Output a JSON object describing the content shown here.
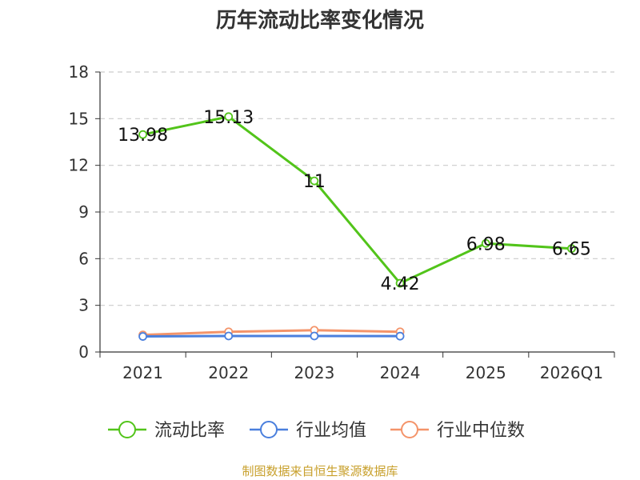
{
  "chart_data": {
    "type": "line",
    "title": "历年流动比率变化情况",
    "categories": [
      "2021",
      "2022",
      "2023",
      "2024",
      "2025",
      "2026Q1"
    ],
    "ylim": [
      0,
      18
    ],
    "yticks": [
      "0",
      "3",
      "6",
      "9",
      "12",
      "15",
      "18"
    ],
    "grid": true,
    "legend_position": "bottom",
    "series": [
      {
        "name": "流动比率",
        "color": "#52c41a",
        "values": [
          13.98,
          15.13,
          11,
          4.42,
          6.98,
          6.65
        ],
        "labels": [
          "13.98",
          "15.13",
          "11",
          "4.42",
          "6.98",
          "6.65"
        ]
      },
      {
        "name": "行业均值",
        "color": "#4a7fdd",
        "values": [
          1.0,
          1.03,
          1.03,
          1.02,
          null,
          null
        ]
      },
      {
        "name": "行业中位数",
        "color": "#f4946a",
        "values": [
          1.1,
          1.3,
          1.4,
          1.3,
          null,
          null
        ]
      }
    ]
  },
  "footer": {
    "source": "制图数据来自恒生聚源数据库"
  }
}
